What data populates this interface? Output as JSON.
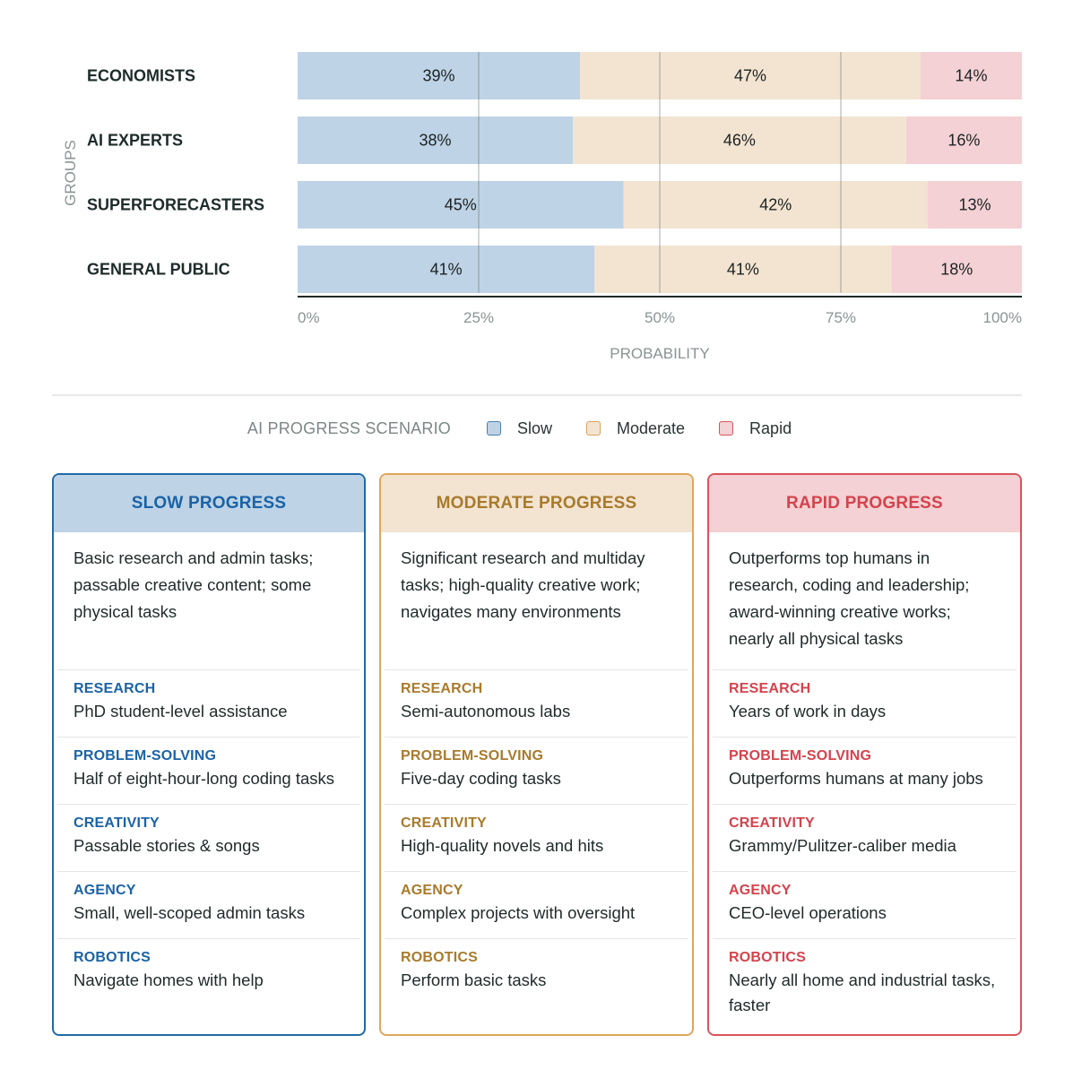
{
  "chart_data": {
    "type": "bar",
    "orientation": "horizontal",
    "stacked": true,
    "categories": [
      "ECONOMISTS",
      "AI EXPERTS",
      "SUPERFORECASTERS",
      "GENERAL PUBLIC"
    ],
    "series": [
      {
        "name": "Slow",
        "values": [
          39,
          38,
          45,
          41
        ],
        "color": "#bed3e6"
      },
      {
        "name": "Moderate",
        "values": [
          47,
          46,
          42,
          41
        ],
        "color": "#f3e4d1"
      },
      {
        "name": "Rapid",
        "values": [
          14,
          16,
          13,
          18
        ],
        "color": "#f4d1d4"
      }
    ],
    "value_labels": [
      [
        "39%",
        "47%",
        "14%"
      ],
      [
        "38%",
        "46%",
        "16%"
      ],
      [
        "45%",
        "42%",
        "13%"
      ],
      [
        "41%",
        "41%",
        "18%"
      ]
    ],
    "xlabel": "PROBABILITY",
    "ylabel": "GROUPS",
    "xlim": [
      0,
      100
    ],
    "xticks": [
      0,
      25,
      50,
      75,
      100
    ],
    "xtick_labels": [
      "0%",
      "25%",
      "50%",
      "75%",
      "100%"
    ],
    "grid": true
  },
  "legend": {
    "title": "AI PROGRESS SCENARIO",
    "items": [
      {
        "label": "Slow",
        "fill": "#bed3e6",
        "border": "#4a7fb0"
      },
      {
        "label": "Moderate",
        "fill": "#f3e4d1",
        "border": "#d9a35f"
      },
      {
        "label": "Rapid",
        "fill": "#f4d1d4",
        "border": "#d9535c"
      }
    ]
  },
  "cards": [
    {
      "title": "SLOW PROGRESS",
      "border_color": "#1f6aa8",
      "header_bg": "#bed3e6",
      "accent": "#1a63a6",
      "description": "Basic research and admin tasks; passable creative content; some physical tasks",
      "rows": [
        {
          "label": "RESEARCH",
          "value": "PhD student-level assistance"
        },
        {
          "label": "PROBLEM-SOLVING",
          "value": "Half of eight-hour-long coding tasks"
        },
        {
          "label": "CREATIVITY",
          "value": "Passable stories & songs"
        },
        {
          "label": "AGENCY",
          "value": "Small, well-scoped admin tasks"
        },
        {
          "label": "ROBOTICS",
          "value": "Navigate homes with help"
        }
      ]
    },
    {
      "title": "MODERATE PROGRESS",
      "border_color": "#e0a65c",
      "header_bg": "#f3e4d1",
      "accent": "#a87a2c",
      "description": "Significant research and multiday tasks; high-quality creative work; navigates many environments",
      "rows": [
        {
          "label": "RESEARCH",
          "value": "Semi-autonomous labs"
        },
        {
          "label": "PROBLEM-SOLVING",
          "value": "Five-day coding tasks"
        },
        {
          "label": "CREATIVITY",
          "value": "High-quality novels and hits"
        },
        {
          "label": "AGENCY",
          "value": "Complex projects with oversight"
        },
        {
          "label": "ROBOTICS",
          "value": "Perform basic tasks"
        }
      ]
    },
    {
      "title": "RAPID PROGRESS",
      "border_color": "#d9535c",
      "header_bg": "#f4d1d4",
      "accent": "#d4434c",
      "description": "Outperforms top humans in research, coding and leadership; award-winning creative works; nearly all physical tasks",
      "rows": [
        {
          "label": "RESEARCH",
          "value": "Years of work in days"
        },
        {
          "label": "PROBLEM-SOLVING",
          "value": "Outperforms humans at many jobs"
        },
        {
          "label": "CREATIVITY",
          "value": "Grammy/Pulitzer-caliber media"
        },
        {
          "label": "AGENCY",
          "value": "CEO-level operations"
        },
        {
          "label": "ROBOTICS",
          "value": "Nearly all home and industrial tasks, faster"
        }
      ]
    }
  ]
}
